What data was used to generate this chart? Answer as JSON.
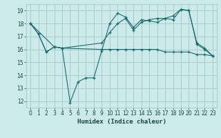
{
  "title": "",
  "xlabel": "Humidex (Indice chaleur)",
  "ylabel": "",
  "bg_color": "#cceaea",
  "grid_color": "#aacccc",
  "line_color": "#1a6b6b",
  "xlim": [
    -0.5,
    23.5
  ],
  "ylim": [
    11.5,
    19.5
  ],
  "xticks": [
    0,
    1,
    2,
    3,
    4,
    5,
    6,
    7,
    8,
    9,
    10,
    11,
    12,
    13,
    14,
    15,
    16,
    17,
    18,
    19,
    20,
    21,
    22,
    23
  ],
  "yticks": [
    12,
    13,
    14,
    15,
    16,
    17,
    18,
    19
  ],
  "series1_x": [
    0,
    1,
    2,
    3,
    4,
    5,
    6,
    7,
    8,
    9,
    10,
    11,
    12,
    13,
    14,
    15,
    16,
    17,
    18,
    19,
    20,
    21,
    22,
    23
  ],
  "series1_y": [
    18.0,
    17.2,
    15.8,
    16.2,
    16.1,
    11.9,
    13.5,
    13.8,
    13.8,
    15.9,
    18.0,
    18.8,
    18.5,
    17.7,
    18.3,
    18.2,
    18.1,
    18.4,
    18.3,
    19.1,
    19.0,
    16.5,
    16.1,
    15.5
  ],
  "series2_x": [
    0,
    1,
    2,
    3,
    4,
    9,
    10,
    11,
    12,
    13,
    14,
    15,
    16,
    17,
    18,
    19,
    20,
    21,
    22,
    23
  ],
  "series2_y": [
    18.0,
    17.2,
    15.8,
    16.2,
    16.1,
    16.0,
    16.0,
    16.0,
    16.0,
    16.0,
    16.0,
    16.0,
    16.0,
    15.8,
    15.8,
    15.8,
    15.8,
    15.6,
    15.6,
    15.5
  ],
  "series3_x": [
    0,
    3,
    4,
    9,
    10,
    11,
    12,
    13,
    14,
    15,
    16,
    17,
    18,
    19,
    20,
    21,
    22,
    23
  ],
  "series3_y": [
    18.0,
    16.2,
    16.1,
    16.5,
    17.3,
    18.0,
    18.4,
    17.5,
    18.1,
    18.3,
    18.4,
    18.4,
    18.6,
    19.1,
    19.0,
    16.4,
    16.0,
    15.5
  ]
}
